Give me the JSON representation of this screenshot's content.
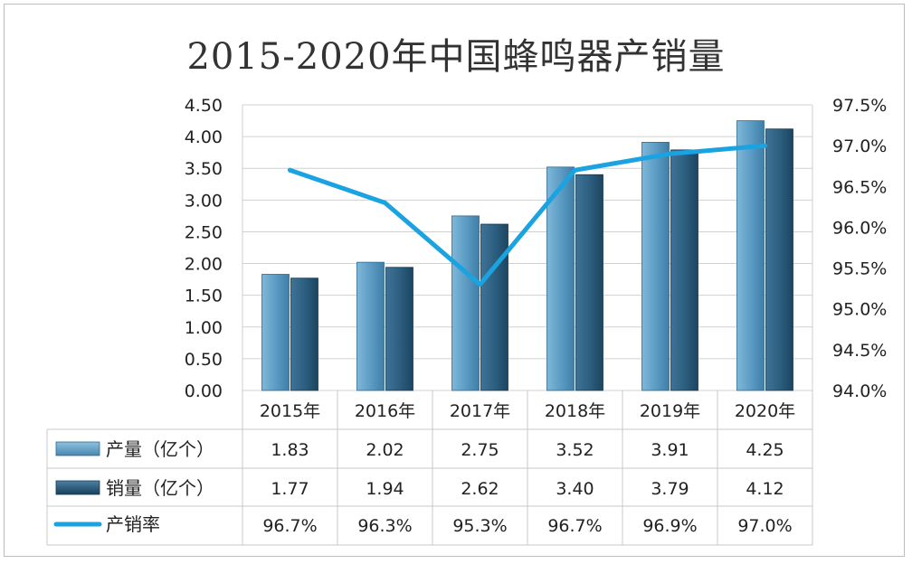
{
  "chart_data": {
    "type": "bar",
    "title": "2015-2020年中国蜂鸣器产销量",
    "categories": [
      "2015年",
      "2016年",
      "2017年",
      "2018年",
      "2019年",
      "2020年"
    ],
    "series": [
      {
        "name": "产量（亿个）",
        "type": "bar",
        "axis": "left",
        "color": "#5d9cc4",
        "values": [
          1.83,
          2.02,
          2.75,
          3.52,
          3.91,
          4.25
        ],
        "labels": [
          "1.83",
          "2.02",
          "2.75",
          "3.52",
          "3.91",
          "4.25"
        ]
      },
      {
        "name": "销量（亿个）",
        "type": "bar",
        "axis": "left",
        "color": "#2d5f80",
        "values": [
          1.77,
          1.94,
          2.62,
          3.4,
          3.79,
          4.12
        ],
        "labels": [
          "1.77",
          "1.94",
          "2.62",
          "3.40",
          "3.79",
          "4.12"
        ]
      },
      {
        "name": "产销率",
        "type": "line",
        "axis": "right",
        "color": "#1aa3e0",
        "values": [
          96.7,
          96.3,
          95.3,
          96.7,
          96.9,
          97.0
        ],
        "labels": [
          "96.7%",
          "96.3%",
          "95.3%",
          "96.7%",
          "96.9%",
          "97.0%"
        ]
      }
    ],
    "y_left": {
      "ylim": [
        0,
        4.5
      ],
      "ticks": [
        0,
        0.5,
        1,
        1.5,
        2,
        2.5,
        3,
        3.5,
        4,
        4.5
      ],
      "tick_labels": [
        "0.00",
        "0.50",
        "1.00",
        "1.50",
        "2.00",
        "2.50",
        "3.00",
        "3.50",
        "4.00",
        "4.50"
      ]
    },
    "y_right": {
      "ylim": [
        94.0,
        97.5
      ],
      "ticks": [
        94.0,
        94.5,
        95.0,
        95.5,
        96.0,
        96.5,
        97.0,
        97.5
      ],
      "tick_labels": [
        "94.0%",
        "94.5%",
        "95.0%",
        "95.5%",
        "96.0%",
        "96.5%",
        "97.0%",
        "97.5%"
      ]
    },
    "grid": true,
    "legend": "data-table"
  }
}
